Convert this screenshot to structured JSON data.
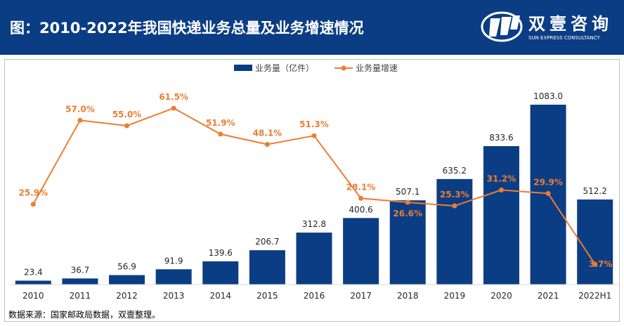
{
  "header": {
    "title": "图：2010-2022年我国快递业务总量及业务增速情况",
    "logo_cn": "双壹咨询",
    "logo_en": "SUN EXPRESS CONSULTANCY"
  },
  "chart_data": {
    "type": "bar",
    "categories": [
      "2010",
      "2011",
      "2012",
      "2013",
      "2014",
      "2015",
      "2016",
      "2017",
      "2018",
      "2019",
      "2020",
      "2021",
      "2022H1"
    ],
    "series": [
      {
        "name": "业务量（亿件）",
        "type": "bar",
        "color": "#0b3d84",
        "values": [
          23.4,
          36.7,
          56.9,
          91.9,
          139.6,
          206.7,
          312.8,
          400.6,
          507.1,
          635.2,
          833.6,
          1083.0,
          512.2
        ],
        "labels": [
          "23.4",
          "36.7",
          "56.9",
          "91.9",
          "139.6",
          "206.7",
          "312.8",
          "400.6",
          "507.1",
          "635.2",
          "833.6",
          "1083.0",
          "512.2"
        ]
      },
      {
        "name": "业务量增速",
        "type": "line",
        "color": "#ed7d31",
        "values": [
          25.9,
          57.0,
          55.0,
          61.5,
          51.9,
          48.1,
          51.3,
          28.1,
          26.6,
          25.3,
          31.2,
          29.9,
          3.7
        ],
        "labels": [
          "25.9%",
          "57.0%",
          "55.0%",
          "61.5%",
          "51.9%",
          "48.1%",
          "51.3%",
          "28.1%",
          "26.6%",
          "25.3%",
          "31.2%",
          "29.9%",
          "3.7%"
        ]
      }
    ],
    "legend_position": "top-center",
    "grid": false
  },
  "footer": {
    "source": "数据来源：国家邮政局数据，双壹整理。"
  }
}
